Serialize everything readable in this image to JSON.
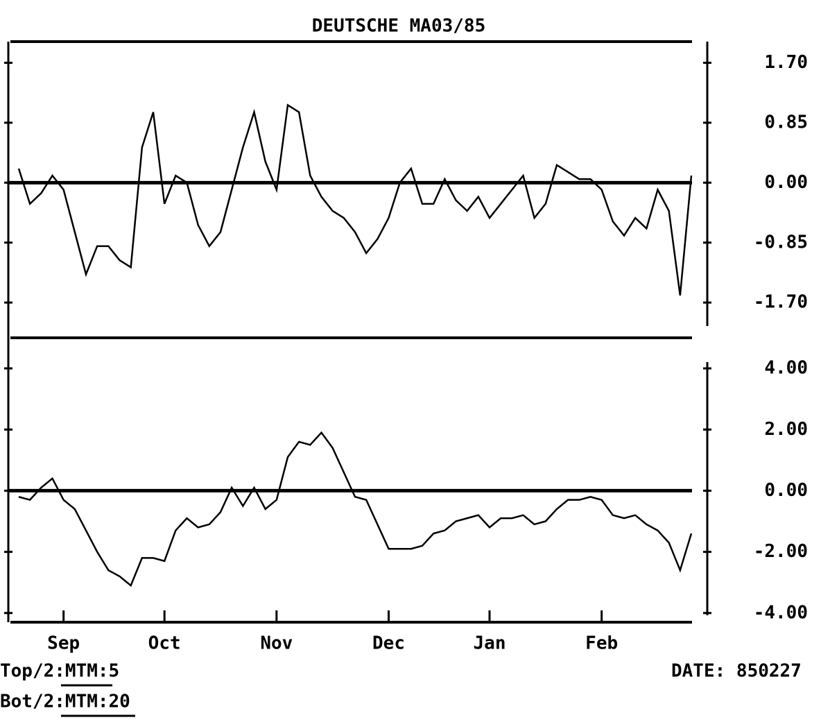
{
  "chart_data": [
    {
      "type": "line",
      "title": "DEUTSCHE MA03/85",
      "annotation": "Top/2:MTM:5",
      "ylim": [
        -2.2,
        2.0
      ],
      "yticks": [
        {
          "value": 1.7,
          "label": "1.70"
        },
        {
          "value": 0.85,
          "label": "0.85"
        },
        {
          "value": 0,
          "label": "0.00"
        },
        {
          "value": -0.85,
          "label": "-0.85"
        },
        {
          "value": -1.7,
          "label": "-1.70"
        }
      ],
      "series": [
        {
          "color": "#000000",
          "values": [
            0.2,
            -0.3,
            -0.15,
            0.1,
            -0.1,
            -0.7,
            -1.3,
            -0.9,
            -0.9,
            -1.1,
            -1.2,
            0.5,
            1.0,
            -0.3,
            0.1,
            0.0,
            -0.6,
            -0.9,
            -0.7,
            -0.1,
            0.5,
            1.0,
            0.3,
            -0.1,
            1.1,
            1.0,
            0.1,
            -0.2,
            -0.4,
            -0.5,
            -0.7,
            -1.0,
            -0.8,
            -0.5,
            0.0,
            0.2,
            -0.3,
            -0.3,
            0.05,
            -0.25,
            -0.4,
            -0.2,
            -0.5,
            -0.3,
            -0.1,
            0.1,
            -0.5,
            -0.3,
            0.25,
            0.15,
            0.05,
            0.05,
            -0.1,
            -0.55,
            -0.75,
            -0.5,
            -0.65,
            -0.1,
            -0.4,
            -1.6,
            0.1
          ]
        }
      ]
    },
    {
      "type": "line",
      "annotation": "Bot/2:MTM:20",
      "categories": [
        null,
        null,
        null,
        null,
        "Sep",
        null,
        null,
        null,
        null,
        null,
        null,
        null,
        null,
        "Oct",
        null,
        null,
        null,
        null,
        null,
        null,
        null,
        null,
        null,
        "Nov",
        null,
        null,
        null,
        null,
        null,
        null,
        null,
        null,
        null,
        "Dec",
        null,
        null,
        null,
        null,
        null,
        null,
        null,
        null,
        "Jan",
        null,
        null,
        null,
        null,
        null,
        null,
        null,
        null,
        null,
        "Feb",
        null,
        null,
        null,
        null,
        null,
        null,
        null,
        null
      ],
      "ylim": [
        -4.3,
        5.0
      ],
      "yticks": [
        {
          "value": 4,
          "label": "4.00"
        },
        {
          "value": 2,
          "label": "2.00"
        },
        {
          "value": 0,
          "label": "0.00"
        },
        {
          "value": -2,
          "label": "-2.00"
        },
        {
          "value": -4,
          "label": "-4.00"
        }
      ],
      "series": [
        {
          "color": "#000000",
          "values": [
            -0.2,
            -0.3,
            0.1,
            0.4,
            -0.3,
            -0.6,
            -1.3,
            -2.0,
            -2.6,
            -2.8,
            -3.1,
            -2.2,
            -2.2,
            -2.3,
            -1.3,
            -0.9,
            -1.2,
            -1.1,
            -0.7,
            0.1,
            -0.5,
            0.1,
            -0.6,
            -0.3,
            1.1,
            1.6,
            1.5,
            1.9,
            1.4,
            0.6,
            -0.2,
            -0.3,
            -1.1,
            -1.9,
            -1.9,
            -1.9,
            -1.8,
            -1.4,
            -1.3,
            -1.0,
            -0.9,
            -0.8,
            -1.2,
            -0.9,
            -0.9,
            -0.8,
            -1.1,
            -1.0,
            -0.6,
            -0.3,
            -0.3,
            -0.2,
            -0.3,
            -0.8,
            -0.9,
            -0.8,
            -1.1,
            -1.3,
            -1.7,
            -2.6,
            -1.4
          ]
        }
      ]
    }
  ],
  "date": "DATE: 850227"
}
